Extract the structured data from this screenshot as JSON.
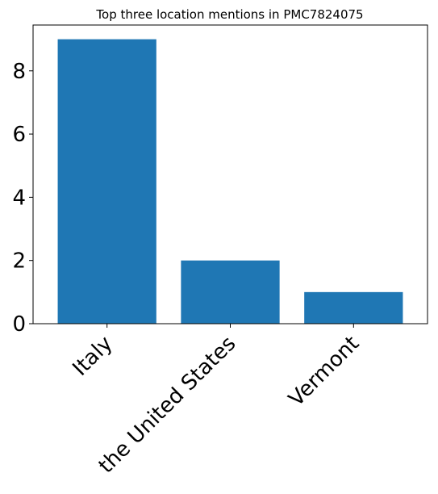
{
  "chart_data": {
    "type": "bar",
    "title": "Top three location mentions in PMC7824075",
    "xlabel": "",
    "ylabel": "",
    "categories": [
      "Italy",
      "the United States",
      "Vermont"
    ],
    "values": [
      9,
      2,
      1
    ],
    "ylim": [
      0,
      9.45
    ],
    "yticks": [
      0,
      2,
      4,
      6,
      8
    ],
    "ytick_labels": [
      "0",
      "2",
      "4",
      "6",
      "8"
    ],
    "bar_color": "#1f77b4",
    "grid": false,
    "legend": "none",
    "x_tick_rotation": "45"
  }
}
